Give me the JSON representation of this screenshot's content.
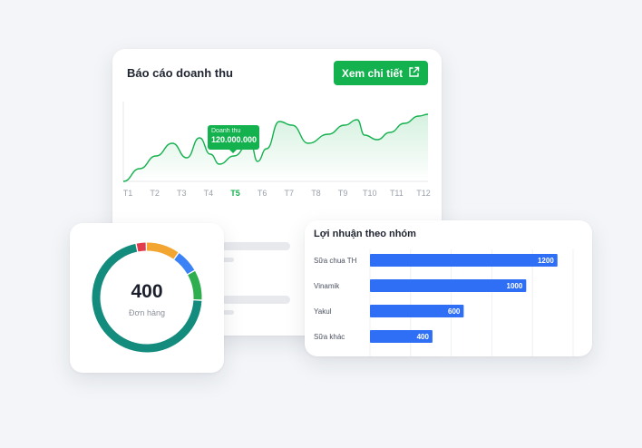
{
  "revenue_card": {
    "title": "Báo cáo doanh thu",
    "detail_button": "Xem chi tiết",
    "tooltip": {
      "label": "Doanh thu",
      "value": "120.000.000"
    },
    "accent_color": "#14b14f"
  },
  "chart_data": [
    {
      "type": "area",
      "title": "Báo cáo doanh thu",
      "categories": [
        "T1",
        "T2",
        "T3",
        "T4",
        "T5",
        "T6",
        "T7",
        "T8",
        "T9",
        "T10",
        "T11",
        "T12"
      ],
      "highlighted_category": "T5",
      "grid": false,
      "color": "#14b14f"
    },
    {
      "type": "bar",
      "orientation": "horizontal",
      "title": "Lợi nhuận theo nhóm",
      "categories": [
        "Sữa chua TH",
        "Vinamik",
        "Yakul",
        "Sữa khác"
      ],
      "values": [
        1200,
        1000,
        600,
        400
      ],
      "xlim": [
        0,
        1300
      ],
      "grid": true,
      "color": "#2f6ff5"
    }
  ],
  "orders_card": {
    "value": "400",
    "label": "Đơn hàng",
    "segments": [
      {
        "color": "#e23b4e",
        "fraction": 0.03
      },
      {
        "color": "#f2a531",
        "fraction": 0.1
      },
      {
        "color": "#3b82f6",
        "fraction": 0.07
      },
      {
        "color": "#2fae4f",
        "fraction": 0.09
      },
      {
        "color": "#138c7e",
        "fraction": 0.71
      }
    ]
  },
  "profit_card": {
    "title": "Lợi nhuận theo nhóm"
  }
}
